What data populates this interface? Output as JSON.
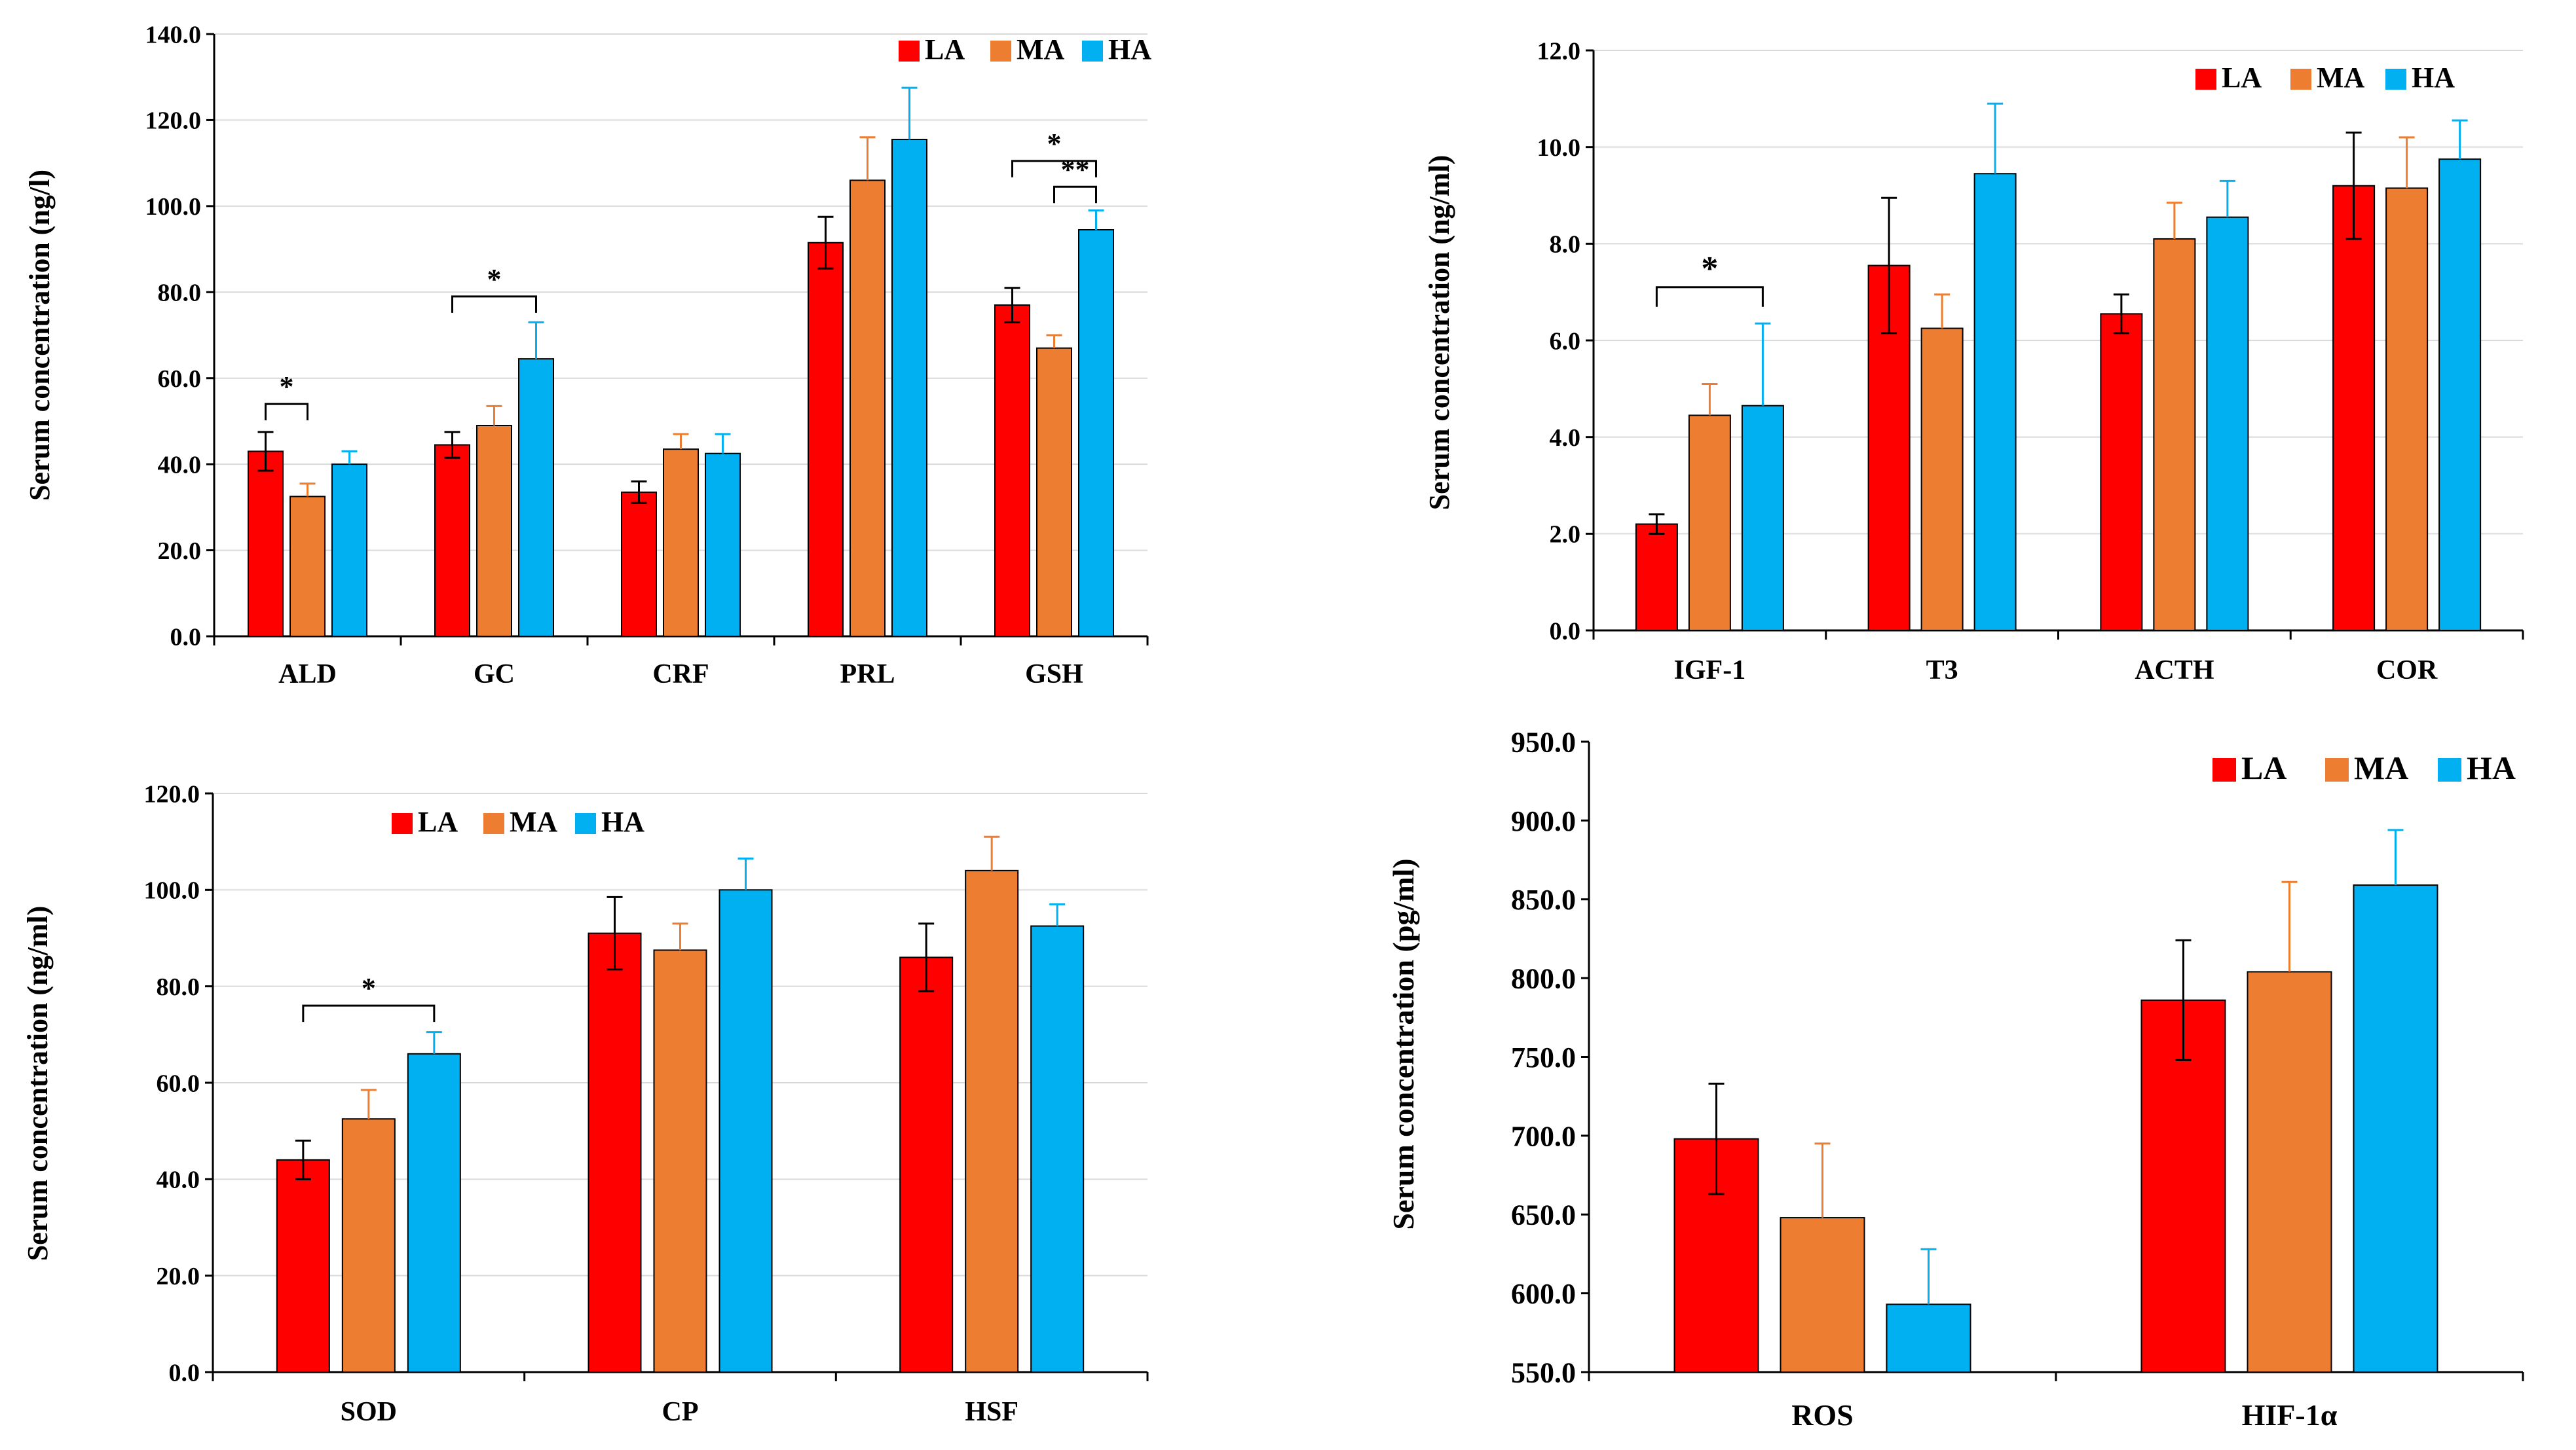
{
  "colors": {
    "LA": "#ff0000",
    "MA": "#ed7d31",
    "HA": "#00b0f0",
    "grid": "#d9d9d9",
    "axis": "#000000"
  },
  "legend": [
    "LA",
    "MA",
    "HA"
  ],
  "chart_data": [
    {
      "type": "bar",
      "title": "",
      "xlabel": "",
      "ylabel": "Serum concentration  (ng/l)",
      "ylim": [
        0,
        140
      ],
      "ytick_step": 20,
      "ytick_labels": [
        "0.0",
        "20.0",
        "40.0",
        "60.0",
        "80.0",
        "100.0",
        "120.0",
        "140.0"
      ],
      "grid": true,
      "legend_position": "top-right",
      "categories": [
        "ALD",
        "GC",
        "CRF",
        "PRL",
        "GSH"
      ],
      "series": [
        {
          "name": "LA",
          "values": [
            43,
            44.5,
            33.5,
            91.5,
            77
          ],
          "errors": [
            4.5,
            3,
            2.5,
            6,
            4
          ]
        },
        {
          "name": "MA",
          "values": [
            32.5,
            49,
            43.5,
            106,
            67
          ],
          "errors": [
            3,
            4.5,
            3.5,
            10,
            3
          ]
        },
        {
          "name": "HA",
          "values": [
            40,
            64.5,
            42.5,
            115.5,
            94.5
          ],
          "errors": [
            3,
            8.5,
            4.5,
            12,
            4.5
          ]
        }
      ],
      "annotations": [
        {
          "category": 0,
          "from": "LA",
          "to": "MA",
          "y": 54,
          "label": "*"
        },
        {
          "category": 1,
          "from": "LA",
          "to": "HA",
          "y": 79,
          "label": "*"
        },
        {
          "category": 4,
          "from": "LA",
          "to": "HA",
          "y": 110.5,
          "label": "*"
        },
        {
          "category": 4,
          "from": "MA",
          "to": "HA",
          "y": 104.5,
          "label": "**"
        }
      ]
    },
    {
      "type": "bar",
      "title": "",
      "xlabel": "",
      "ylabel": "Serum concentration (ng/ml)",
      "ylim": [
        0,
        12
      ],
      "ytick_step": 2,
      "ytick_labels": [
        "0.0",
        "2.0",
        "4.0",
        "6.0",
        "8.0",
        "10.0",
        "12.0"
      ],
      "grid": true,
      "legend_position": "top-right",
      "categories": [
        "IGF-1",
        "T3",
        "ACTH",
        "COR"
      ],
      "series": [
        {
          "name": "LA",
          "values": [
            2.2,
            7.55,
            6.55,
            9.2
          ],
          "errors": [
            0.2,
            1.4,
            0.4,
            1.1
          ]
        },
        {
          "name": "MA",
          "values": [
            4.45,
            6.25,
            8.1,
            9.15
          ],
          "errors": [
            0.65,
            0.7,
            0.75,
            1.05
          ]
        },
        {
          "name": "HA",
          "values": [
            4.65,
            9.45,
            8.55,
            9.75
          ],
          "errors": [
            1.7,
            1.45,
            0.75,
            0.8
          ]
        }
      ],
      "annotations": [
        {
          "category": 0,
          "from": "LA",
          "to": "HA",
          "y": 7.1,
          "label": "*"
        }
      ]
    },
    {
      "type": "bar",
      "title": "",
      "xlabel": "",
      "ylabel": "Serum concentration  (ng/ml)",
      "ylim": [
        0,
        120
      ],
      "ytick_step": 20,
      "ytick_labels": [
        "0.0",
        "20.0",
        "40.0",
        "60.0",
        "80.0",
        "100.0",
        "120.0"
      ],
      "grid": true,
      "legend_position": "top-center",
      "categories": [
        "SOD",
        "CP",
        "HSF"
      ],
      "series": [
        {
          "name": "LA",
          "values": [
            44,
            91,
            86
          ],
          "errors": [
            4,
            7.5,
            7
          ]
        },
        {
          "name": "MA",
          "values": [
            52.5,
            87.5,
            104
          ],
          "errors": [
            6,
            5.5,
            7
          ]
        },
        {
          "name": "HA",
          "values": [
            66,
            100,
            92.5
          ],
          "errors": [
            4.5,
            6.5,
            4.5
          ]
        }
      ],
      "annotations": [
        {
          "category": 0,
          "from": "LA",
          "to": "HA",
          "y": 76,
          "label": "*"
        }
      ]
    },
    {
      "type": "bar",
      "title": "",
      "xlabel": "",
      "ylabel": "Serum concentration (pg/ml)",
      "ylim": [
        550,
        950
      ],
      "ytick_step": 50,
      "ytick_labels": [
        "550.0",
        "600.0",
        "650.0",
        "700.0",
        "750.0",
        "800.0",
        "850.0",
        "900.0",
        "950.0"
      ],
      "grid": false,
      "legend_position": "top-right",
      "categories": [
        "ROS",
        "HIF-1α"
      ],
      "series": [
        {
          "name": "LA",
          "values": [
            698,
            786
          ],
          "errors": [
            35,
            38
          ]
        },
        {
          "name": "MA",
          "values": [
            648,
            804
          ],
          "errors": [
            47,
            57
          ]
        },
        {
          "name": "HA",
          "values": [
            593,
            859
          ],
          "errors": [
            35,
            35
          ]
        }
      ],
      "annotations": []
    }
  ]
}
